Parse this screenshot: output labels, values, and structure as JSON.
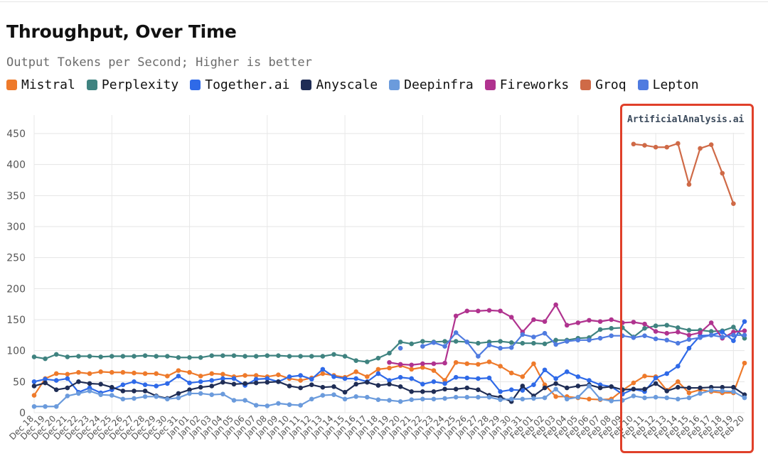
{
  "title": "Throughput, Over Time",
  "subtitle": "Output Tokens per Second; Higher is better",
  "watermark": "ArtificialAnalysis.ai",
  "chart_data": {
    "type": "line",
    "title": "Throughput, Over Time",
    "subtitle": "Output Tokens per Second; Higher is better",
    "xlabel": "",
    "ylabel": "",
    "ylim": [
      0,
      470
    ],
    "yticks": [
      0,
      50,
      100,
      150,
      200,
      250,
      300,
      350,
      400,
      450
    ],
    "grid": true,
    "legend_position": "top",
    "categories": [
      "Dec 18",
      "Dec 19",
      "Dec 20",
      "Dec 21",
      "Dec 22",
      "Dec 23",
      "Dec 24",
      "Dec 25",
      "Dec 26",
      "Dec 27",
      "Dec 28",
      "Dec 29",
      "Dec 30",
      "Dec 31",
      "Jan 01",
      "Jan 02",
      "Jan 03",
      "Jan 04",
      "Jan 05",
      "Jan 06",
      "Jan 07",
      "Jan 08",
      "Jan 09",
      "Jan 10",
      "Jan 11",
      "Jan 12",
      "Jan 13",
      "Jan 14",
      "Jan 15",
      "Jan 16",
      "Jan 17",
      "Jan 18",
      "Jan 19",
      "Jan 20",
      "Jan 21",
      "Jan 22",
      "Jan 23",
      "Jan 24",
      "Jan 25",
      "Jan 26",
      "Jan 27",
      "Jan 28",
      "Jan 29",
      "Jan 30",
      "Jan 31",
      "Feb 01",
      "Feb 02",
      "Feb 03",
      "Feb 04",
      "Feb 05",
      "Feb 06",
      "Feb 07",
      "Feb 08",
      "Feb 09",
      "Feb 10",
      "Feb 11",
      "Feb 12",
      "Feb 13",
      "Feb 14",
      "Feb 15",
      "Feb 16",
      "Feb 17",
      "Feb 18",
      "Feb 19",
      "Feb 20"
    ],
    "series": [
      {
        "name": "Mistral",
        "color": "#ee7a2b",
        "values": [
          28,
          55,
          63,
          62,
          65,
          63,
          66,
          65,
          65,
          64,
          63,
          63,
          59,
          68,
          65,
          59,
          63,
          62,
          58,
          60,
          60,
          58,
          61,
          55,
          52,
          56,
          63,
          60,
          57,
          66,
          58,
          70,
          72,
          76,
          70,
          73,
          68,
          52,
          81,
          79,
          78,
          82,
          75,
          64,
          58,
          79,
          45,
          26,
          26,
          24,
          22,
          21,
          22,
          36,
          48,
          59,
          58,
          36,
          50,
          32,
          37,
          34,
          32,
          32,
          80
        ]
      },
      {
        "name": "Perplexity",
        "color": "#3f8380",
        "values": [
          90,
          87,
          94,
          90,
          91,
          91,
          90,
          91,
          91,
          91,
          92,
          91,
          91,
          89,
          89,
          89,
          92,
          92,
          92,
          91,
          91,
          92,
          92,
          91,
          91,
          91,
          91,
          94,
          91,
          84,
          82,
          88,
          96,
          114,
          111,
          115,
          114,
          115,
          115,
          114,
          112,
          114,
          115,
          113,
          112,
          112,
          111,
          117,
          117,
          120,
          121,
          134,
          136,
          137,
          122,
          136,
          140,
          141,
          137,
          133,
          133,
          131,
          132,
          138,
          120
        ]
      },
      {
        "name": "Together.ai",
        "color": "#2f6ae8",
        "values": [
          50,
          54,
          52,
          55,
          33,
          40,
          32,
          37,
          45,
          50,
          45,
          43,
          47,
          59,
          48,
          50,
          52,
          55,
          55,
          44,
          54,
          55,
          50,
          58,
          60,
          54,
          70,
          58,
          55,
          55,
          50,
          63,
          52,
          57,
          55,
          46,
          50,
          47,
          57,
          56,
          55,
          56,
          34,
          37,
          36,
          45,
          69,
          55,
          66,
          58,
          52,
          45,
          42,
          30,
          38,
          34,
          56,
          63,
          75,
          104,
          124,
          125,
          130,
          116,
          147
        ]
      },
      {
        "name": "Anyscale",
        "color": "#1f2d55",
        "values": [
          43,
          48,
          37,
          40,
          50,
          47,
          46,
          41,
          35,
          35,
          35,
          27,
          23,
          31,
          37,
          41,
          43,
          49,
          46,
          47,
          48,
          49,
          50,
          43,
          40,
          45,
          41,
          42,
          33,
          46,
          49,
          44,
          46,
          42,
          34,
          34,
          34,
          38,
          38,
          40,
          37,
          28,
          25,
          18,
          43,
          27,
          40,
          47,
          40,
          43,
          45,
          40,
          42,
          37,
          38,
          38,
          47,
          35,
          41,
          40,
          40,
          41,
          41,
          41,
          29
        ]
      },
      {
        "name": "Deepinfra",
        "color": "#6b9bdc",
        "values": [
          10,
          10,
          10,
          27,
          31,
          35,
          29,
          28,
          22,
          23,
          26,
          26,
          22,
          24,
          31,
          31,
          29,
          30,
          20,
          20,
          12,
          11,
          15,
          13,
          12,
          22,
          28,
          29,
          22,
          26,
          25,
          21,
          20,
          18,
          21,
          22,
          22,
          23,
          25,
          25,
          25,
          25,
          21,
          22,
          22,
          23,
          24,
          38,
          22,
          25,
          43,
          22,
          19,
          20,
          27,
          24,
          25,
          24,
          22,
          24,
          31,
          36,
          35,
          34,
          24
        ]
      },
      {
        "name": "Fireworks",
        "color": "#b0338f",
        "values": [
          null,
          null,
          null,
          null,
          null,
          null,
          null,
          null,
          null,
          null,
          null,
          null,
          null,
          null,
          null,
          null,
          null,
          null,
          null,
          null,
          null,
          null,
          null,
          null,
          null,
          null,
          null,
          null,
          null,
          null,
          null,
          null,
          81,
          78,
          77,
          79,
          79,
          80,
          156,
          164,
          164,
          165,
          164,
          154,
          130,
          150,
          147,
          174,
          141,
          145,
          149,
          147,
          150,
          145,
          146,
          143,
          131,
          128,
          130,
          125,
          129,
          145,
          120,
          130,
          132
        ]
      },
      {
        "name": "Groq",
        "color": "#cf6a47",
        "values": [
          null,
          null,
          null,
          null,
          null,
          null,
          null,
          null,
          null,
          null,
          null,
          null,
          null,
          null,
          null,
          null,
          null,
          null,
          null,
          null,
          null,
          null,
          null,
          null,
          null,
          null,
          null,
          null,
          null,
          null,
          null,
          null,
          null,
          null,
          null,
          null,
          null,
          null,
          null,
          null,
          null,
          null,
          null,
          null,
          null,
          null,
          null,
          null,
          null,
          null,
          null,
          null,
          null,
          null,
          433,
          431,
          428,
          428,
          434,
          368,
          426,
          432,
          386,
          337,
          null
        ]
      },
      {
        "name": "Lepton",
        "color": "#4f7be0",
        "values": [
          null,
          null,
          null,
          null,
          null,
          null,
          null,
          null,
          null,
          null,
          null,
          null,
          null,
          null,
          null,
          null,
          null,
          null,
          null,
          null,
          null,
          null,
          null,
          null,
          null,
          null,
          null,
          null,
          null,
          null,
          null,
          null,
          null,
          104,
          null,
          107,
          113,
          107,
          129,
          114,
          91,
          109,
          104,
          105,
          126,
          122,
          128,
          110,
          115,
          117,
          117,
          120,
          124,
          124,
          121,
          124,
          119,
          117,
          112,
          118,
          121,
          125,
          122,
          125,
          125
        ]
      }
    ]
  },
  "icons": {
    "legend_swatch": "rounded-square"
  }
}
